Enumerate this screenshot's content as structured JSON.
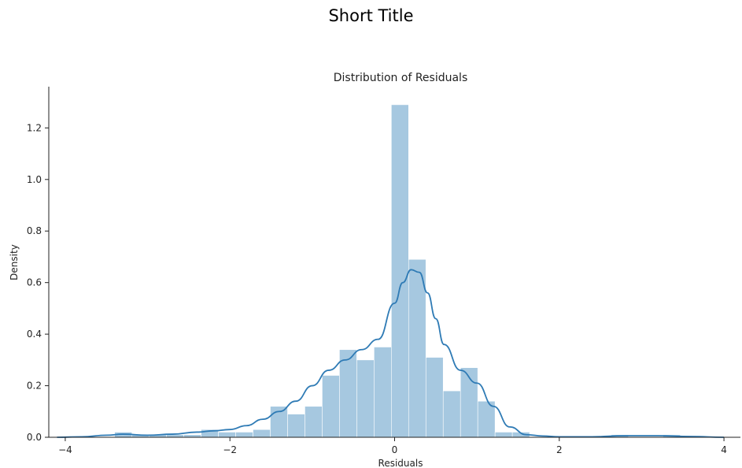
{
  "page": {
    "title": "Short Title"
  },
  "chart_data": {
    "type": "histogram",
    "title": "Distribution of Residuals",
    "xlabel": "Residuals",
    "ylabel": "Density",
    "xlim": [
      -4.2,
      4.2
    ],
    "ylim": [
      0,
      1.36
    ],
    "xticks": [
      -4,
      -2,
      0,
      2,
      4
    ],
    "yticks": [
      0.0,
      0.2,
      0.4,
      0.6,
      0.8,
      1.0,
      1.2
    ],
    "xtick_labels": [
      "−4",
      "−2",
      "0",
      "2",
      "4"
    ],
    "ytick_labels": [
      "0.0",
      "0.2",
      "0.4",
      "0.6",
      "0.8",
      "1.0",
      "1.2"
    ],
    "grid": false,
    "colors": {
      "bars": "#a6c8e0",
      "kde": "#2f7bb5",
      "axes": "#222222"
    },
    "bin_width": 0.21,
    "bins": [
      {
        "start": -3.4,
        "density": 0.02
      },
      {
        "start": -3.19,
        "density": 0.01
      },
      {
        "start": -2.98,
        "density": 0.01
      },
      {
        "start": -2.77,
        "density": 0.01
      },
      {
        "start": -2.56,
        "density": 0.01
      },
      {
        "start": -2.35,
        "density": 0.03
      },
      {
        "start": -2.14,
        "density": 0.02
      },
      {
        "start": -1.93,
        "density": 0.02
      },
      {
        "start": -1.72,
        "density": 0.03
      },
      {
        "start": -1.51,
        "density": 0.12
      },
      {
        "start": -1.3,
        "density": 0.09
      },
      {
        "start": -1.09,
        "density": 0.12
      },
      {
        "start": -0.88,
        "density": 0.24
      },
      {
        "start": -0.67,
        "density": 0.34
      },
      {
        "start": -0.46,
        "density": 0.3
      },
      {
        "start": -0.25,
        "density": 0.35
      },
      {
        "start": -0.04,
        "density": 1.29
      },
      {
        "start": 0.17,
        "density": 0.69
      },
      {
        "start": 0.38,
        "density": 0.31
      },
      {
        "start": 0.59,
        "density": 0.18
      },
      {
        "start": 0.8,
        "density": 0.27
      },
      {
        "start": 1.01,
        "density": 0.14
      },
      {
        "start": 1.22,
        "density": 0.02
      },
      {
        "start": 1.43,
        "density": 0.02
      },
      {
        "start": 2.63,
        "density": 0.01
      },
      {
        "start": 3.26,
        "density": 0.01
      }
    ],
    "kde": {
      "x": [
        -4.1,
        -3.8,
        -3.5,
        -3.3,
        -3.0,
        -2.7,
        -2.4,
        -2.2,
        -2.0,
        -1.8,
        -1.6,
        -1.4,
        -1.2,
        -1.0,
        -0.8,
        -0.6,
        -0.4,
        -0.2,
        0.0,
        0.1,
        0.2,
        0.3,
        0.4,
        0.5,
        0.6,
        0.8,
        1.0,
        1.2,
        1.4,
        1.6,
        1.8,
        2.0,
        2.4,
        2.8,
        3.2,
        3.6,
        4.0
      ],
      "y": [
        0.0,
        0.002,
        0.008,
        0.012,
        0.008,
        0.012,
        0.02,
        0.025,
        0.03,
        0.045,
        0.07,
        0.1,
        0.14,
        0.2,
        0.26,
        0.3,
        0.34,
        0.38,
        0.52,
        0.6,
        0.65,
        0.64,
        0.56,
        0.46,
        0.36,
        0.26,
        0.21,
        0.12,
        0.04,
        0.01,
        0.005,
        0.002,
        0.002,
        0.006,
        0.006,
        0.003,
        0.0
      ]
    }
  }
}
